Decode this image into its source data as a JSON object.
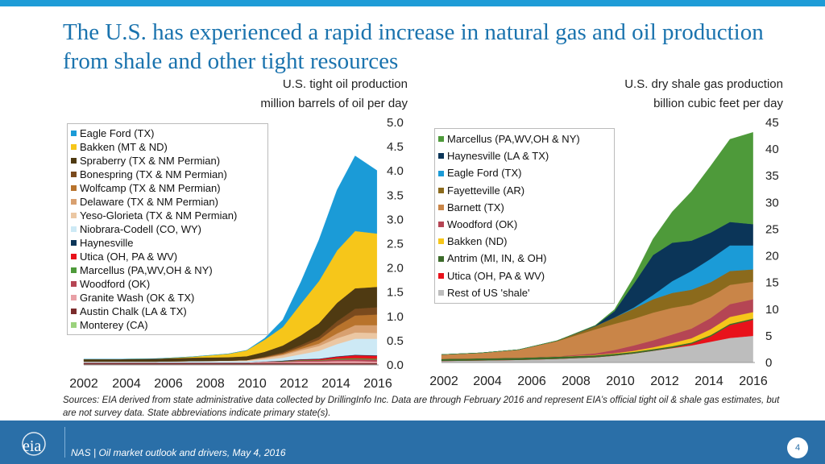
{
  "title": "The U.S. has experienced a rapid increase in natural gas and oil production from shale and other tight resources",
  "colors": {
    "accent": "#1a73ae",
    "footer": "#2a6fa8",
    "topbar": "#1e9cd7"
  },
  "chart_data": [
    {
      "type": "area",
      "stacked": true,
      "title_line1": "U.S. tight oil production",
      "title_line2": "million barrels of oil per day",
      "x": [
        2000,
        2002,
        2004,
        2006,
        2008,
        2009,
        2010,
        2011,
        2012,
        2013,
        2014,
        2015,
        2016.2
      ],
      "x_ticks": [
        "2002",
        "2004",
        "2006",
        "2008",
        "2010",
        "2012",
        "2014",
        "2016"
      ],
      "ylim": [
        0,
        5.0
      ],
      "y_ticks": [
        "0.0",
        "0.5",
        "1.0",
        "1.5",
        "2.0",
        "2.5",
        "3.0",
        "3.5",
        "4.0",
        "4.5",
        "5.0"
      ],
      "y_axis_side": "right",
      "legend_position": "top-left",
      "series": [
        {
          "name": "Monterey (CA)",
          "color": "#9bd27d",
          "values": [
            0.01,
            0.01,
            0.01,
            0.01,
            0.01,
            0.01,
            0.01,
            0.01,
            0.01,
            0.01,
            0.01,
            0.01,
            0.01
          ]
        },
        {
          "name": "Austin Chalk (LA & TX)",
          "color": "#7b2c2c",
          "values": [
            0.03,
            0.03,
            0.03,
            0.03,
            0.03,
            0.03,
            0.03,
            0.03,
            0.03,
            0.03,
            0.03,
            0.03,
            0.03
          ]
        },
        {
          "name": "Granite Wash (OK & TX)",
          "color": "#e8a0a6",
          "values": [
            0.01,
            0.01,
            0.01,
            0.01,
            0.01,
            0.01,
            0.02,
            0.02,
            0.03,
            0.03,
            0.04,
            0.04,
            0.03
          ]
        },
        {
          "name": "Woodford (OK)",
          "color": "#b54554",
          "values": [
            0.0,
            0.0,
            0.0,
            0.0,
            0.0,
            0.0,
            0.01,
            0.01,
            0.02,
            0.02,
            0.03,
            0.04,
            0.04
          ]
        },
        {
          "name": "Marcellus (PA,WV,OH & NY)",
          "color": "#4e9a3a",
          "values": [
            0.0,
            0.0,
            0.0,
            0.0,
            0.0,
            0.0,
            0.0,
            0.01,
            0.01,
            0.01,
            0.02,
            0.02,
            0.02
          ]
        },
        {
          "name": "Utica (OH, PA & WV)",
          "color": "#e8121b",
          "values": [
            0.0,
            0.0,
            0.0,
            0.0,
            0.0,
            0.0,
            0.0,
            0.0,
            0.01,
            0.02,
            0.04,
            0.06,
            0.06
          ]
        },
        {
          "name": "Haynesville",
          "color": "#0b3558",
          "values": [
            0.0,
            0.0,
            0.0,
            0.0,
            0.0,
            0.0,
            0.0,
            0.01,
            0.01,
            0.01,
            0.01,
            0.01,
            0.01
          ]
        },
        {
          "name": "Niobrara-Codell (CO, WY)",
          "color": "#cde9f5",
          "values": [
            0.02,
            0.02,
            0.02,
            0.03,
            0.03,
            0.03,
            0.04,
            0.06,
            0.1,
            0.16,
            0.25,
            0.33,
            0.34
          ]
        },
        {
          "name": "Yeso-Glorieta (TX & NM Permian)",
          "color": "#ebc7a3",
          "values": [
            0.0,
            0.0,
            0.0,
            0.0,
            0.01,
            0.02,
            0.03,
            0.05,
            0.08,
            0.1,
            0.12,
            0.13,
            0.12
          ]
        },
        {
          "name": "Delaware (TX & NM Permian)",
          "color": "#d8a070",
          "values": [
            0.0,
            0.0,
            0.0,
            0.0,
            0.0,
            0.0,
            0.01,
            0.02,
            0.03,
            0.05,
            0.1,
            0.15,
            0.16
          ]
        },
        {
          "name": "Wolfcamp (TX & NM Permian)",
          "color": "#b8732c",
          "values": [
            0.0,
            0.0,
            0.0,
            0.0,
            0.0,
            0.0,
            0.01,
            0.02,
            0.04,
            0.08,
            0.15,
            0.2,
            0.22
          ]
        },
        {
          "name": "Bonespring (TX & NM Permian)",
          "color": "#7a4a1d",
          "values": [
            0.0,
            0.0,
            0.0,
            0.0,
            0.0,
            0.0,
            0.01,
            0.02,
            0.04,
            0.06,
            0.1,
            0.14,
            0.15
          ]
        },
        {
          "name": "Spraberry (TX & NM Permian)",
          "color": "#4f3a12",
          "values": [
            0.05,
            0.05,
            0.06,
            0.07,
            0.07,
            0.08,
            0.1,
            0.14,
            0.2,
            0.28,
            0.38,
            0.42,
            0.42
          ]
        },
        {
          "name": "Bakken (MT & ND)",
          "color": "#f6c61a",
          "values": [
            0.0,
            0.0,
            0.0,
            0.02,
            0.07,
            0.12,
            0.25,
            0.38,
            0.65,
            0.87,
            1.08,
            1.18,
            1.1
          ]
        },
        {
          "name": "Eagle Ford (TX)",
          "color": "#1b9bd7",
          "values": [
            0.0,
            0.0,
            0.0,
            0.0,
            0.0,
            0.0,
            0.03,
            0.15,
            0.45,
            0.85,
            1.25,
            1.55,
            1.3
          ]
        }
      ]
    },
    {
      "type": "area",
      "stacked": true,
      "title_line1": "U.S. dry shale gas production",
      "title_line2": "billion cubic feet per day",
      "x": [
        2000,
        2002,
        2004,
        2006,
        2008,
        2009,
        2010,
        2011,
        2012,
        2013,
        2014,
        2015,
        2016.2
      ],
      "x_ticks": [
        "2002",
        "2004",
        "2006",
        "2008",
        "2010",
        "2012",
        "2014",
        "2016"
      ],
      "ylim": [
        0,
        45
      ],
      "y_ticks": [
        "0",
        "5",
        "10",
        "15",
        "20",
        "25",
        "30",
        "35",
        "40",
        "45"
      ],
      "y_axis_side": "right",
      "legend_position": "top-left",
      "series": [
        {
          "name": "Rest of US 'shale'",
          "color": "#bdbdbd",
          "values": [
            0.3,
            0.4,
            0.5,
            0.7,
            1.0,
            1.3,
            1.7,
            2.2,
            2.7,
            3.2,
            3.9,
            4.6,
            5.0
          ]
        },
        {
          "name": "Utica (OH, PA & WV)",
          "color": "#e8121b",
          "values": [
            0.0,
            0.0,
            0.0,
            0.0,
            0.0,
            0.0,
            0.0,
            0.0,
            0.05,
            0.3,
            1.0,
            2.4,
            3.0
          ]
        },
        {
          "name": "Antrim (MI, IN, & OH)",
          "color": "#3c6b2a",
          "values": [
            0.4,
            0.4,
            0.4,
            0.4,
            0.35,
            0.35,
            0.3,
            0.3,
            0.3,
            0.25,
            0.25,
            0.25,
            0.25
          ]
        },
        {
          "name": "Bakken (ND)",
          "color": "#f6c61a",
          "values": [
            0.0,
            0.0,
            0.0,
            0.02,
            0.07,
            0.1,
            0.2,
            0.35,
            0.6,
            0.8,
            1.1,
            1.3,
            1.2
          ]
        },
        {
          "name": "Woodford (OK)",
          "color": "#b54554",
          "values": [
            0.0,
            0.0,
            0.0,
            0.05,
            0.3,
            0.6,
            1.0,
            1.3,
            1.6,
            1.8,
            2.1,
            2.4,
            2.4
          ]
        },
        {
          "name": "Barnett (TX)",
          "color": "#c98548",
          "values": [
            0.8,
            1.0,
            1.5,
            2.8,
            4.5,
            4.9,
            5.0,
            5.2,
            5.0,
            4.5,
            4.0,
            3.6,
            3.3
          ]
        },
        {
          "name": "Fayetteville (AR)",
          "color": "#8b6a1c",
          "values": [
            0.0,
            0.0,
            0.0,
            0.1,
            0.6,
            1.2,
            1.9,
            2.5,
            2.8,
            2.8,
            2.7,
            2.6,
            2.3
          ]
        },
        {
          "name": "Eagle Ford (TX)",
          "color": "#1b9bd7",
          "values": [
            0.0,
            0.0,
            0.0,
            0.0,
            0.0,
            0.0,
            0.2,
            0.8,
            2.2,
            3.5,
            4.4,
            4.8,
            4.5
          ]
        },
        {
          "name": "Haynesville (LA & TX)",
          "color": "#0b3558",
          "values": [
            0.0,
            0.0,
            0.0,
            0.0,
            0.1,
            1.2,
            4.5,
            7.5,
            7.2,
            5.7,
            4.9,
            4.4,
            4.0
          ]
        },
        {
          "name": "Marcellus (PA,WV,OH & NY)",
          "color": "#4e9a3a",
          "values": [
            0.0,
            0.0,
            0.0,
            0.0,
            0.05,
            0.3,
            1.2,
            3.0,
            5.8,
            9.2,
            12.5,
            15.5,
            17.2
          ]
        }
      ]
    }
  ],
  "sources": "Sources: EIA derived from state administrative data collected by DrillingInfo Inc. Data are through February 2016  and represent EIA’s official tight oil & shale gas estimates, but are not survey data. State abbreviations indicate primary state(s).",
  "footer": {
    "logo_text": "eia",
    "text": "NAS | Oil market outlook and drivers, May 4, 2016",
    "page_number": "4"
  }
}
